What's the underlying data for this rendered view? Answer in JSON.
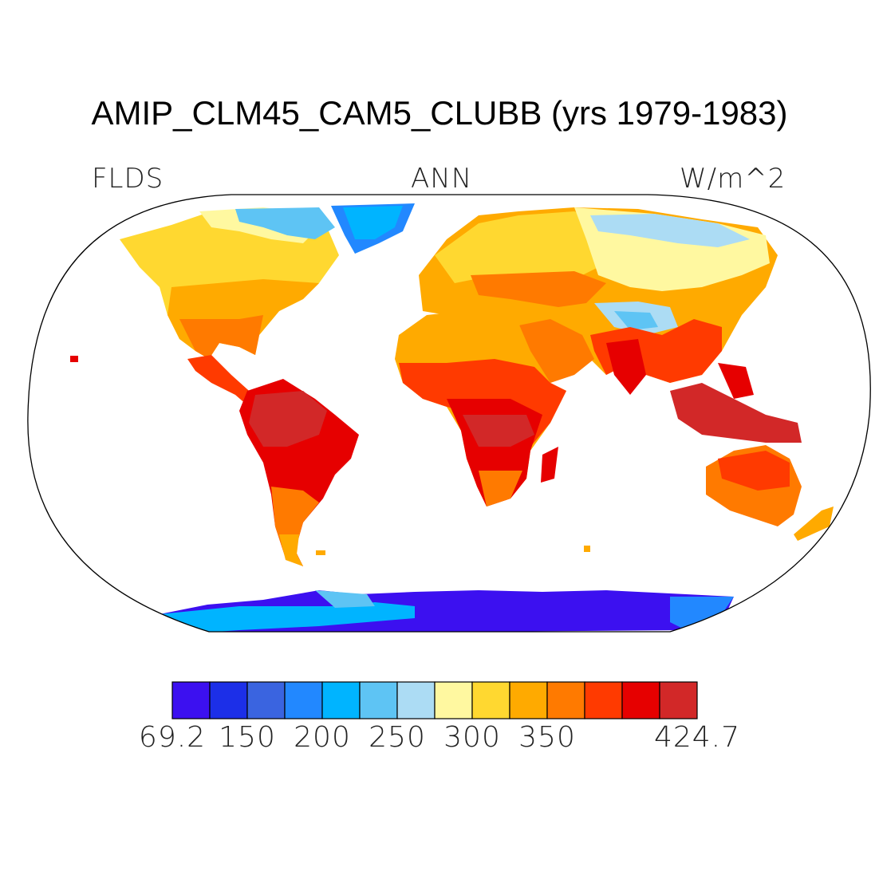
{
  "title": "AMIP_CLM45_CAM5_CLUBB (yrs 1979-1983)",
  "variable": "FLDS",
  "season": "ANN",
  "units": "W/m^2",
  "colorbar": {
    "colors": [
      "#3c10f0",
      "#1c2fe8",
      "#3a64e0",
      "#2288ff",
      "#00b4ff",
      "#5ec4f4",
      "#acdcf4",
      "#fff8a0",
      "#ffd830",
      "#ffaa00",
      "#ff7a00",
      "#ff3a00",
      "#e60000",
      "#d22828"
    ],
    "labels": [
      {
        "text": "69.2",
        "edge": 0
      },
      {
        "text": "150",
        "edge": 2
      },
      {
        "text": "200",
        "edge": 4
      },
      {
        "text": "250",
        "edge": 6
      },
      {
        "text": "300",
        "edge": 8
      },
      {
        "text": "350",
        "edge": 10
      },
      {
        "text": "424.7",
        "edge": 14
      }
    ],
    "range": [
      69.2,
      424.7
    ]
  }
}
